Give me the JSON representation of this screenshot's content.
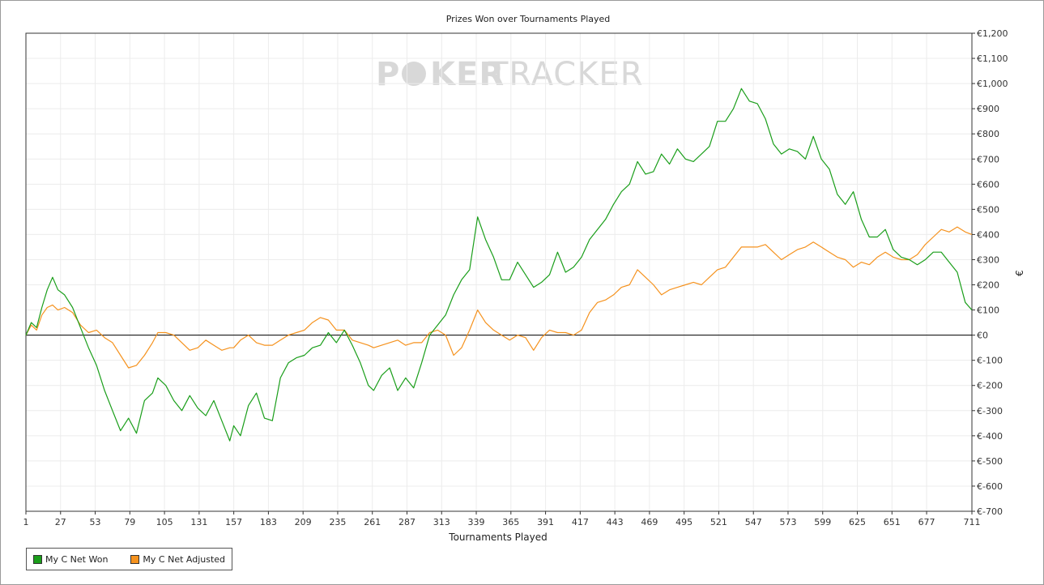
{
  "chart_data": {
    "type": "line",
    "title": "Prizes Won over Tournaments Played",
    "xlabel": "Tournaments Played",
    "ylabel": "€",
    "watermark": {
      "left": "P",
      "mid": "KER",
      "right": "TRACKER"
    },
    "x_ticks": [
      1,
      27,
      53,
      79,
      105,
      131,
      157,
      183,
      209,
      235,
      261,
      287,
      313,
      339,
      365,
      391,
      417,
      443,
      469,
      495,
      521,
      547,
      573,
      599,
      625,
      651,
      677,
      711
    ],
    "y_ticks": [
      -700,
      -600,
      -500,
      -400,
      -300,
      -200,
      -100,
      0,
      100,
      200,
      300,
      400,
      500,
      600,
      700,
      800,
      900,
      1000,
      1100,
      1200
    ],
    "y_tick_labels": [
      "€-700",
      "€-600",
      "€-500",
      "€-400",
      "€-300",
      "€-200",
      "€-100",
      "€0",
      "€100",
      "€200",
      "€300",
      "€400",
      "€500",
      "€600",
      "€700",
      "€800",
      "€900",
      "€1,000",
      "€1,100",
      "€1,200"
    ],
    "xlim": [
      1,
      711
    ],
    "ylim": [
      -700,
      1200
    ],
    "grid": true,
    "legend_position": "bottom-left",
    "series": [
      {
        "name": "My C Net Won",
        "color": "#1a9e1a",
        "x": [
          1,
          5,
          9,
          13,
          17,
          21,
          25,
          30,
          36,
          42,
          48,
          54,
          60,
          66,
          72,
          78,
          84,
          90,
          96,
          100,
          106,
          112,
          118,
          124,
          130,
          136,
          142,
          148,
          154,
          157,
          162,
          168,
          174,
          180,
          186,
          192,
          198,
          204,
          210,
          216,
          222,
          228,
          234,
          240,
          246,
          252,
          258,
          262,
          268,
          274,
          280,
          286,
          292,
          298,
          304,
          310,
          316,
          322,
          328,
          334,
          340,
          346,
          352,
          358,
          364,
          370,
          376,
          382,
          388,
          394,
          400,
          406,
          412,
          418,
          424,
          430,
          436,
          442,
          448,
          454,
          460,
          466,
          472,
          478,
          484,
          490,
          496,
          502,
          508,
          514,
          520,
          526,
          532,
          538,
          544,
          550,
          556,
          562,
          568,
          574,
          580,
          586,
          592,
          598,
          604,
          610,
          616,
          622,
          628,
          634,
          640,
          646,
          652,
          658,
          664,
          670,
          676,
          682,
          688,
          694,
          700,
          706,
          711
        ],
        "values": [
          0,
          50,
          30,
          110,
          180,
          230,
          180,
          160,
          110,
          30,
          -50,
          -120,
          -220,
          -300,
          -380,
          -330,
          -390,
          -260,
          -230,
          -170,
          -200,
          -260,
          -300,
          -240,
          -290,
          -320,
          -260,
          -340,
          -420,
          -360,
          -400,
          -280,
          -230,
          -330,
          -340,
          -170,
          -110,
          -90,
          -80,
          -50,
          -40,
          10,
          -30,
          20,
          -40,
          -110,
          -200,
          -220,
          -160,
          -130,
          -220,
          -170,
          -210,
          -110,
          0,
          40,
          80,
          160,
          220,
          260,
          470,
          380,
          310,
          220,
          220,
          290,
          240,
          190,
          210,
          240,
          330,
          250,
          270,
          310,
          380,
          420,
          460,
          520,
          570,
          600,
          690,
          640,
          650,
          720,
          680,
          740,
          700,
          690,
          720,
          750,
          850,
          850,
          900,
          980,
          930,
          920,
          860,
          760,
          720,
          740,
          730,
          700,
          790,
          700,
          660,
          560,
          520,
          570,
          460,
          390,
          390,
          420,
          340,
          310,
          300,
          280,
          300,
          330,
          330,
          290,
          250,
          130,
          100
        ]
      },
      {
        "name": "My C Net Adjusted",
        "color": "#f5921e",
        "x": [
          1,
          5,
          9,
          13,
          17,
          21,
          25,
          30,
          36,
          42,
          48,
          54,
          60,
          66,
          72,
          78,
          84,
          90,
          96,
          100,
          106,
          112,
          118,
          124,
          130,
          136,
          142,
          148,
          154,
          157,
          162,
          168,
          174,
          180,
          186,
          192,
          198,
          204,
          210,
          216,
          222,
          228,
          234,
          240,
          246,
          252,
          258,
          262,
          268,
          274,
          280,
          286,
          292,
          298,
          304,
          310,
          316,
          322,
          328,
          334,
          340,
          346,
          352,
          358,
          364,
          370,
          376,
          382,
          388,
          394,
          400,
          406,
          412,
          418,
          424,
          430,
          436,
          442,
          448,
          454,
          460,
          466,
          472,
          478,
          484,
          490,
          496,
          502,
          508,
          514,
          520,
          526,
          532,
          538,
          544,
          550,
          556,
          562,
          568,
          574,
          580,
          586,
          592,
          598,
          604,
          610,
          616,
          622,
          628,
          634,
          640,
          646,
          652,
          658,
          664,
          670,
          676,
          682,
          688,
          694,
          700,
          706,
          711
        ],
        "values": [
          0,
          40,
          20,
          80,
          110,
          120,
          100,
          110,
          90,
          40,
          10,
          20,
          -10,
          -30,
          -80,
          -130,
          -120,
          -80,
          -30,
          10,
          10,
          0,
          -30,
          -60,
          -50,
          -20,
          -40,
          -60,
          -50,
          -50,
          -20,
          0,
          -30,
          -40,
          -40,
          -20,
          0,
          10,
          20,
          50,
          70,
          60,
          20,
          20,
          -20,
          -30,
          -40,
          -50,
          -40,
          -30,
          -20,
          -40,
          -30,
          -30,
          10,
          20,
          0,
          -80,
          -50,
          20,
          100,
          50,
          20,
          0,
          -20,
          0,
          -10,
          -60,
          -10,
          20,
          10,
          10,
          0,
          20,
          90,
          130,
          140,
          160,
          190,
          200,
          260,
          230,
          200,
          160,
          180,
          190,
          200,
          210,
          200,
          230,
          260,
          270,
          310,
          350,
          350,
          350,
          360,
          330,
          300,
          320,
          340,
          350,
          370,
          350,
          330,
          310,
          300,
          270,
          290,
          280,
          310,
          330,
          310,
          300,
          300,
          320,
          360,
          390,
          420,
          410,
          430,
          410,
          400
        ]
      }
    ]
  },
  "legend": {
    "items": [
      {
        "label": "My C Net Won",
        "color": "#1a9e1a"
      },
      {
        "label": "My C Net Adjusted",
        "color": "#f5921e"
      }
    ]
  }
}
